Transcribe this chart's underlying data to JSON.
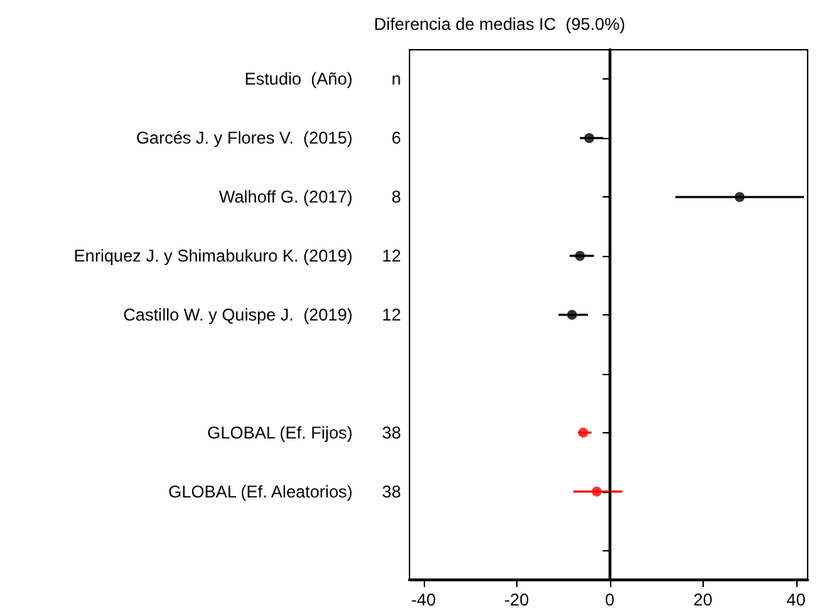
{
  "chart_data": {
    "type": "scatter",
    "orientation": "horizontal",
    "title": "Diferencia de medias IC  (95.0%)",
    "categories": [
      "Estudio  (Año)",
      "Garcés J. y Flores V.  (2015)",
      "Walhoff G. (2017)",
      "Enriquez J. y Shimabukuro K. (2019)",
      "Castillo W. y Quispe J.  (2019)",
      null,
      "GLOBAL (Ef. Fijos)",
      "GLOBAL (Ef. Aleatorios)",
      null
    ],
    "y2_categories": [
      "n",
      "6",
      "8",
      "12",
      "12",
      null,
      "38",
      "38",
      null
    ],
    "values": [
      null,
      -4.4,
      27.9,
      -6.4,
      -8.1,
      null,
      -5.7,
      -2.8,
      null
    ],
    "errors": [
      null,
      [
        -6.4,
        -1.4
      ],
      [
        14.1,
        41.7
      ],
      [
        -8.6,
        -3.4
      ],
      [
        -11,
        -4.7
      ],
      null,
      [
        -6.8,
        -3.9
      ],
      [
        -7.8,
        2.7
      ],
      null
    ],
    "colors": [
      null,
      "#000000",
      "#000000",
      "#000000",
      "#000000",
      null,
      "#ff0000",
      "#ff0000",
      null
    ],
    "xlim": [
      -43,
      42.5
    ],
    "xticks": [
      -40,
      -20,
      0,
      20,
      40
    ],
    "ref_lines": [
      {
        "axis": "x",
        "value": 0,
        "color": "#000000"
      }
    ],
    "marker": "circle",
    "grid": false
  }
}
